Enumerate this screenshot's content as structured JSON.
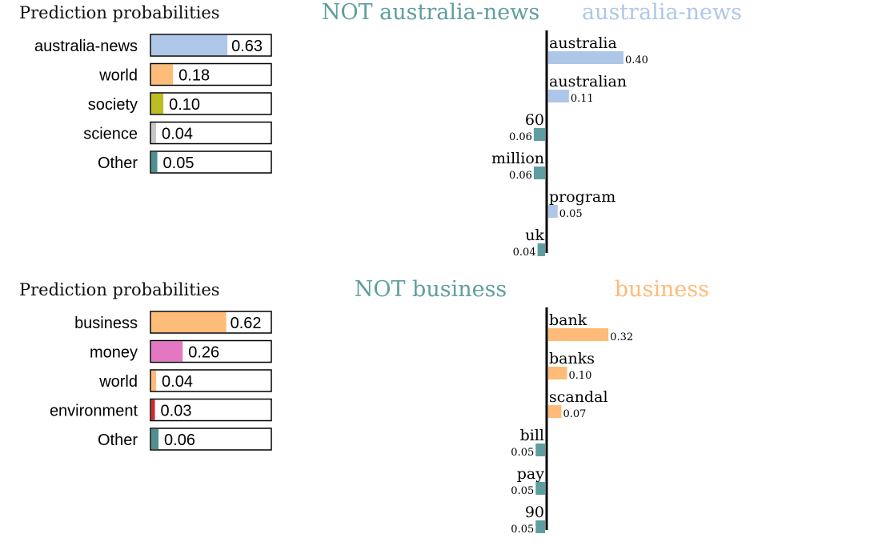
{
  "chart_data": [
    {
      "type": "bar",
      "title": "Prediction probabilities",
      "categories": [
        "australia-news",
        "world",
        "society",
        "science",
        "Other"
      ],
      "values": [
        0.63,
        0.18,
        0.1,
        0.04,
        0.05
      ],
      "value_labels": [
        "0.63",
        "0.18",
        "0.10",
        "0.04",
        "0.05"
      ],
      "colors": [
        "#aec7e8",
        "#ffbb78",
        "#bcbd22",
        "#c7c7c7",
        "#4e8f8f"
      ],
      "xlim": [
        0,
        1
      ]
    },
    {
      "type": "bar",
      "neg_title": "NOT australia-news",
      "pos_title": "australia-news",
      "neg_color": "#5f9ea0",
      "pos_color": "#aec7e8",
      "categories": [
        "australia",
        "australian",
        "60",
        "million",
        "program",
        "uk"
      ],
      "values": [
        0.4,
        0.11,
        -0.06,
        -0.06,
        0.05,
        -0.04
      ],
      "value_labels": [
        "0.40",
        "0.11",
        "0.06",
        "0.06",
        "0.05",
        "0.04"
      ]
    },
    {
      "type": "bar",
      "title": "Prediction probabilities",
      "categories": [
        "business",
        "money",
        "world",
        "environment",
        "Other"
      ],
      "values": [
        0.62,
        0.26,
        0.04,
        0.03,
        0.06
      ],
      "value_labels": [
        "0.62",
        "0.26",
        "0.04",
        "0.03",
        "0.06"
      ],
      "colors": [
        "#ffbb78",
        "#e377c2",
        "#ffbb78",
        "#d62728",
        "#4e8f8f"
      ],
      "xlim": [
        0,
        1
      ]
    },
    {
      "type": "bar",
      "neg_title": "NOT business",
      "pos_title": "business",
      "neg_color": "#5f9ea0",
      "pos_color": "#ffbb78",
      "categories": [
        "bank",
        "banks",
        "scandal",
        "bill",
        "pay",
        "90"
      ],
      "values": [
        0.32,
        0.1,
        0.07,
        -0.05,
        -0.05,
        -0.05
      ],
      "value_labels": [
        "0.32",
        "0.10",
        "0.07",
        "0.05",
        "0.05",
        "0.05"
      ]
    }
  ]
}
